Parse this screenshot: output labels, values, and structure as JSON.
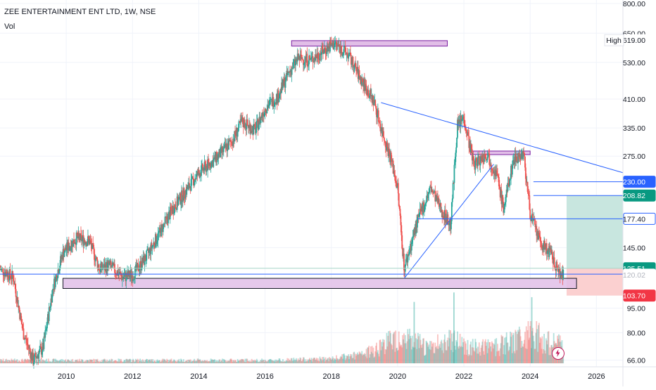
{
  "header": {
    "title": "ZEE ENTERTAINMENT ENT LTD, 1W, NSE",
    "indicator": "Vol"
  },
  "colors": {
    "up": "#26a69a",
    "down": "#ef5350",
    "trendline": "#2962ff",
    "zone_fill": "#e1bee7",
    "zone_border": "#7b1fa2",
    "target_fill": "#c8e6df",
    "stop_fill": "#fbd0d0"
  },
  "icons": {
    "quick_action": "lightning-icon"
  },
  "chart_data": {
    "type": "candlestick",
    "symbol": "ZEE ENTERTAINMENT ENT LTD",
    "timeframe": "1W",
    "exchange": "NSE",
    "y_scale": "log",
    "ylim": [
      63,
      820
    ],
    "xlim": [
      2008.0,
      2026.8
    ],
    "y_ticks": [
      "66.00",
      "80.00",
      "95.00",
      "145.00",
      "275.00",
      "335.00",
      "410.00",
      "530.00",
      "650.00",
      "800.00"
    ],
    "x_ticks": [
      "2010",
      "2012",
      "2014",
      "2016",
      "2018",
      "2020",
      "2022",
      "2024",
      "2026"
    ],
    "price_path": [
      [
        2008.0,
        125
      ],
      [
        2008.4,
        118
      ],
      [
        2008.7,
        80
      ],
      [
        2009.0,
        66
      ],
      [
        2009.3,
        72
      ],
      [
        2009.6,
        110
      ],
      [
        2009.9,
        140
      ],
      [
        2010.3,
        155
      ],
      [
        2010.7,
        152
      ],
      [
        2011.0,
        125
      ],
      [
        2011.3,
        128
      ],
      [
        2011.7,
        118
      ],
      [
        2012.0,
        120
      ],
      [
        2012.4,
        135
      ],
      [
        2012.8,
        160
      ],
      [
        2013.2,
        190
      ],
      [
        2013.6,
        215
      ],
      [
        2014.0,
        245
      ],
      [
        2014.5,
        270
      ],
      [
        2015.0,
        305
      ],
      [
        2015.3,
        350
      ],
      [
        2015.7,
        330
      ],
      [
        2016.0,
        385
      ],
      [
        2016.4,
        420
      ],
      [
        2016.7,
        490
      ],
      [
        2017.0,
        545
      ],
      [
        2017.4,
        540
      ],
      [
        2017.8,
        580
      ],
      [
        2018.1,
        605
      ],
      [
        2018.5,
        560
      ],
      [
        2018.9,
        470
      ],
      [
        2019.3,
        400
      ],
      [
        2019.5,
        335
      ],
      [
        2019.8,
        270
      ],
      [
        2020.0,
        220
      ],
      [
        2020.2,
        125
      ],
      [
        2020.6,
        175
      ],
      [
        2021.0,
        220
      ],
      [
        2021.3,
        190
      ],
      [
        2021.6,
        170
      ],
      [
        2021.8,
        340
      ],
      [
        2022.0,
        360
      ],
      [
        2022.3,
        260
      ],
      [
        2022.7,
        280
      ],
      [
        2023.0,
        240
      ],
      [
        2023.2,
        190
      ],
      [
        2023.5,
        270
      ],
      [
        2023.8,
        280
      ],
      [
        2024.0,
        185
      ],
      [
        2024.3,
        150
      ],
      [
        2024.6,
        140
      ],
      [
        2024.8,
        125
      ],
      [
        2025.0,
        120
      ]
    ],
    "volume_profile": [
      [
        2008.0,
        1
      ],
      [
        2009.0,
        1
      ],
      [
        2010.0,
        1
      ],
      [
        2012.0,
        1
      ],
      [
        2014.0,
        1
      ],
      [
        2016.0,
        1
      ],
      [
        2018.0,
        1.5
      ],
      [
        2019.0,
        3
      ],
      [
        2019.5,
        6
      ],
      [
        2020.0,
        9
      ],
      [
        2020.5,
        7
      ],
      [
        2021.0,
        5
      ],
      [
        2021.7,
        9
      ],
      [
        2022.0,
        6
      ],
      [
        2022.5,
        5
      ],
      [
        2023.0,
        6
      ],
      [
        2023.5,
        7
      ],
      [
        2024.0,
        11
      ],
      [
        2024.5,
        7
      ],
      [
        2025.0,
        6
      ]
    ],
    "volume_peaks": [
      [
        2020.5,
        13
      ],
      [
        2021.7,
        15
      ],
      [
        2024.05,
        14
      ]
    ],
    "annotations": {
      "top_zone": {
        "x": [
          2016.8,
          2021.5
        ],
        "y": [
          594,
          617
        ]
      },
      "support_zone": {
        "x": [
          2009.9,
          2025.4
        ],
        "y": [
          109,
          117
        ]
      },
      "falling_trendline": {
        "from": [
          2019.5,
          400
        ],
        "to": [
          2026.8,
          245
        ]
      },
      "rising_trendline": {
        "from": [
          2020.2,
          117
        ],
        "to": [
          2022.9,
          260
        ]
      },
      "small_zone": {
        "x": [
          2022.2,
          2024.0
        ],
        "y": [
          278,
          285
        ]
      },
      "level_230": {
        "from": 2024.1,
        "y": 230
      },
      "level_177": {
        "from": 2020.6,
        "y": 177.4
      },
      "level_target": {
        "from": 2024.1,
        "y": 208.82
      },
      "level_entry": {
        "from": 2008.0,
        "y": 120.5
      },
      "level_thin": {
        "from": 2008.0,
        "y": 125.51
      },
      "target_box": {
        "x": [
          2025.1,
          2026.8
        ],
        "y": [
          125.51,
          208.82
        ]
      },
      "stop_box": {
        "x": [
          2025.1,
          2026.8
        ],
        "y": [
          103.7,
          125.51
        ]
      }
    },
    "price_labels": [
      {
        "value": 619.0,
        "text": "619.00",
        "style": "plain",
        "tag": "High"
      },
      {
        "value": 230.0,
        "text": "230.00",
        "style": "blue"
      },
      {
        "value": 208.82,
        "text": "208.82",
        "style": "green"
      },
      {
        "value": 177.4,
        "text": "177.40",
        "style": "outline-blue"
      },
      {
        "value": 125.51,
        "text": "125.51",
        "style": "green"
      },
      {
        "value": 120.02,
        "text": "120.02",
        "style": "gray"
      },
      {
        "value": 103.7,
        "text": "103.70",
        "style": "red"
      }
    ]
  }
}
